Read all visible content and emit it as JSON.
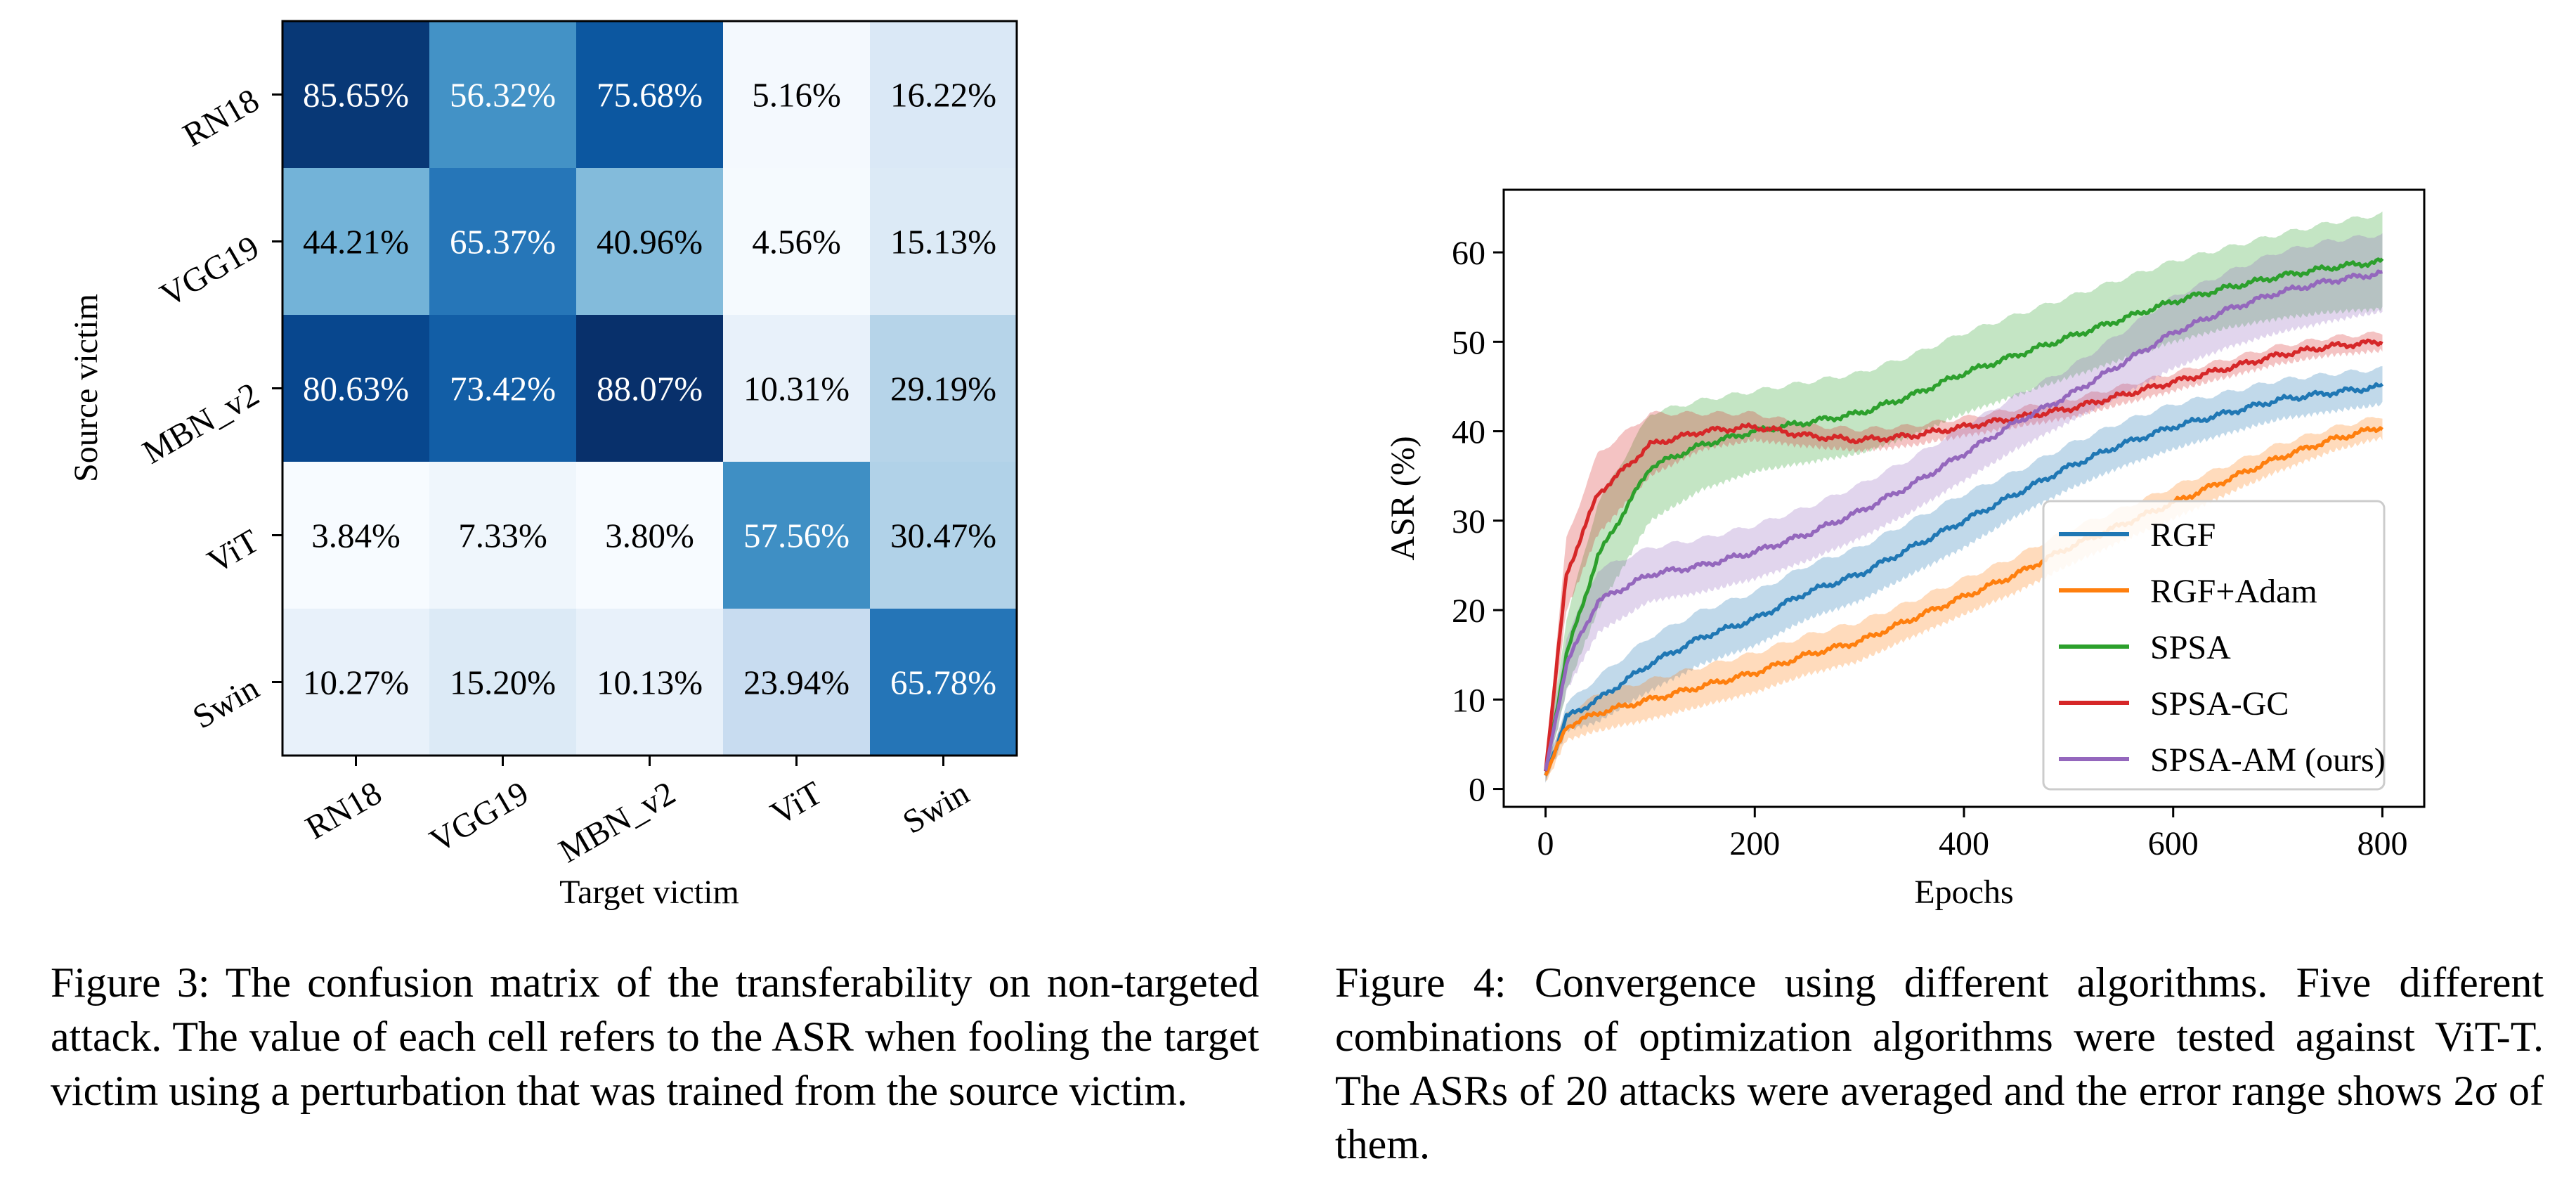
{
  "chart_data": [
    {
      "type": "heatmap",
      "title": "",
      "xlabel": "Target victim",
      "ylabel": "Source victim",
      "rows": [
        "RN18",
        "VGG19",
        "MBN_v2",
        "ViT",
        "Swin"
      ],
      "columns": [
        "RN18",
        "VGG19",
        "MBN_v2",
        "ViT",
        "Swin"
      ],
      "values": [
        [
          85.65,
          56.32,
          75.68,
          5.16,
          16.22
        ],
        [
          44.21,
          65.37,
          40.96,
          4.56,
          15.13
        ],
        [
          80.63,
          73.42,
          88.07,
          10.31,
          29.19
        ],
        [
          3.84,
          7.33,
          3.8,
          57.56,
          30.47
        ],
        [
          10.27,
          15.2,
          10.13,
          23.94,
          65.78
        ]
      ],
      "cell_labels": [
        [
          "85.65%",
          "56.32%",
          "75.68%",
          "5.16%",
          "16.22%"
        ],
        [
          "44.21%",
          "65.37%",
          "40.96%",
          "4.56%",
          "15.13%"
        ],
        [
          "80.63%",
          "73.42%",
          "88.07%",
          "10.31%",
          "29.19%"
        ],
        [
          "3.84%",
          "7.33%",
          "3.80%",
          "57.56%",
          "30.47%"
        ],
        [
          "10.27%",
          "15.20%",
          "10.13%",
          "23.94%",
          "65.78%"
        ]
      ],
      "colormap": "Blues"
    },
    {
      "type": "line",
      "title": "",
      "xlabel": "Epochs",
      "ylabel": "ASR (%)",
      "xlim": [
        -40,
        840
      ],
      "ylim": [
        -2,
        67
      ],
      "xticks": [
        0,
        200,
        400,
        600,
        800
      ],
      "yticks": [
        0,
        10,
        20,
        30,
        40,
        50,
        60
      ],
      "legend_position": "lower-right",
      "error_band": "2 sigma",
      "x": [
        0,
        20,
        50,
        100,
        150,
        200,
        250,
        300,
        350,
        400,
        450,
        500,
        550,
        600,
        650,
        700,
        750,
        800
      ],
      "series": [
        {
          "name": "RGF",
          "color": "#1f77b4",
          "values": [
            1.5,
            8,
            10,
            14,
            17,
            19,
            22,
            24,
            27,
            30,
            33,
            36,
            38.5,
            40.5,
            42,
            43.5,
            44.3,
            45
          ],
          "band": [
            0.8,
            1.5,
            2.5,
            3,
            3,
            3,
            3,
            3,
            3,
            3,
            2.5,
            2.5,
            2.5,
            2.5,
            2.3,
            2.2,
            2.1,
            2
          ]
        },
        {
          "name": "RGF+Adam",
          "color": "#ff7f0e",
          "values": [
            1.5,
            7,
            8.5,
            10,
            11.5,
            13,
            15,
            16.5,
            19,
            21.5,
            24,
            27,
            29.5,
            32,
            34.5,
            37,
            39,
            40.5
          ],
          "band": [
            0.8,
            1.5,
            2,
            2.2,
            2.2,
            2.2,
            2.2,
            2.2,
            2,
            2,
            2,
            2,
            1.8,
            1.8,
            1.6,
            1.5,
            1.3,
            1.2
          ]
        },
        {
          "name": "SPSA",
          "color": "#2ca02c",
          "values": [
            2,
            15,
            26,
            36,
            38.5,
            40,
            41,
            42,
            44,
            46.5,
            48.5,
            50.5,
            52.5,
            54.5,
            56,
            57.3,
            58.3,
            59
          ],
          "band": [
            1,
            4,
            6,
            6,
            5,
            4.5,
            4.5,
            4.5,
            4.5,
            4.5,
            4.5,
            4.5,
            4.5,
            4.5,
            4.5,
            4.7,
            5,
            5.3
          ]
        },
        {
          "name": "SPSA-GC",
          "color": "#d62728",
          "values": [
            2,
            24,
            33,
            38.5,
            40,
            40.5,
            39.5,
            39,
            39.5,
            40.5,
            41.5,
            42.5,
            44,
            45.5,
            47,
            48.5,
            49.5,
            50
          ],
          "band": [
            1,
            4,
            4.5,
            3.5,
            2,
            1.5,
            1.2,
            1.2,
            1.1,
            1,
            1,
            1,
            1,
            1,
            1,
            1,
            1,
            1
          ]
        },
        {
          "name": "SPSA-AM (ours)",
          "color": "#9467bd",
          "values": [
            2,
            14,
            21,
            24,
            25,
            26.5,
            28.5,
            31,
            34,
            37.5,
            41,
            44,
            47.5,
            51,
            53.5,
            55.5,
            56.8,
            57.7
          ],
          "band": [
            1,
            3,
            3.5,
            3,
            3,
            3,
            3,
            3,
            3,
            3,
            3,
            3,
            3.5,
            4,
            4.2,
            4.5,
            4.5,
            4.3
          ]
        }
      ]
    }
  ],
  "captions": {
    "fig3": "Figure 3: The confusion matrix of the transferability on non-targeted attack. The value of each cell refers to the ASR when fooling the target victim using a perturbation that was trained from the source victim.",
    "fig4": "Figure 4: Convergence using different algorithms. Five different combinations of optimization algorithms were tested against ViT-T. The ASRs of 20 attacks were averaged and the error range shows 2σ of them."
  }
}
